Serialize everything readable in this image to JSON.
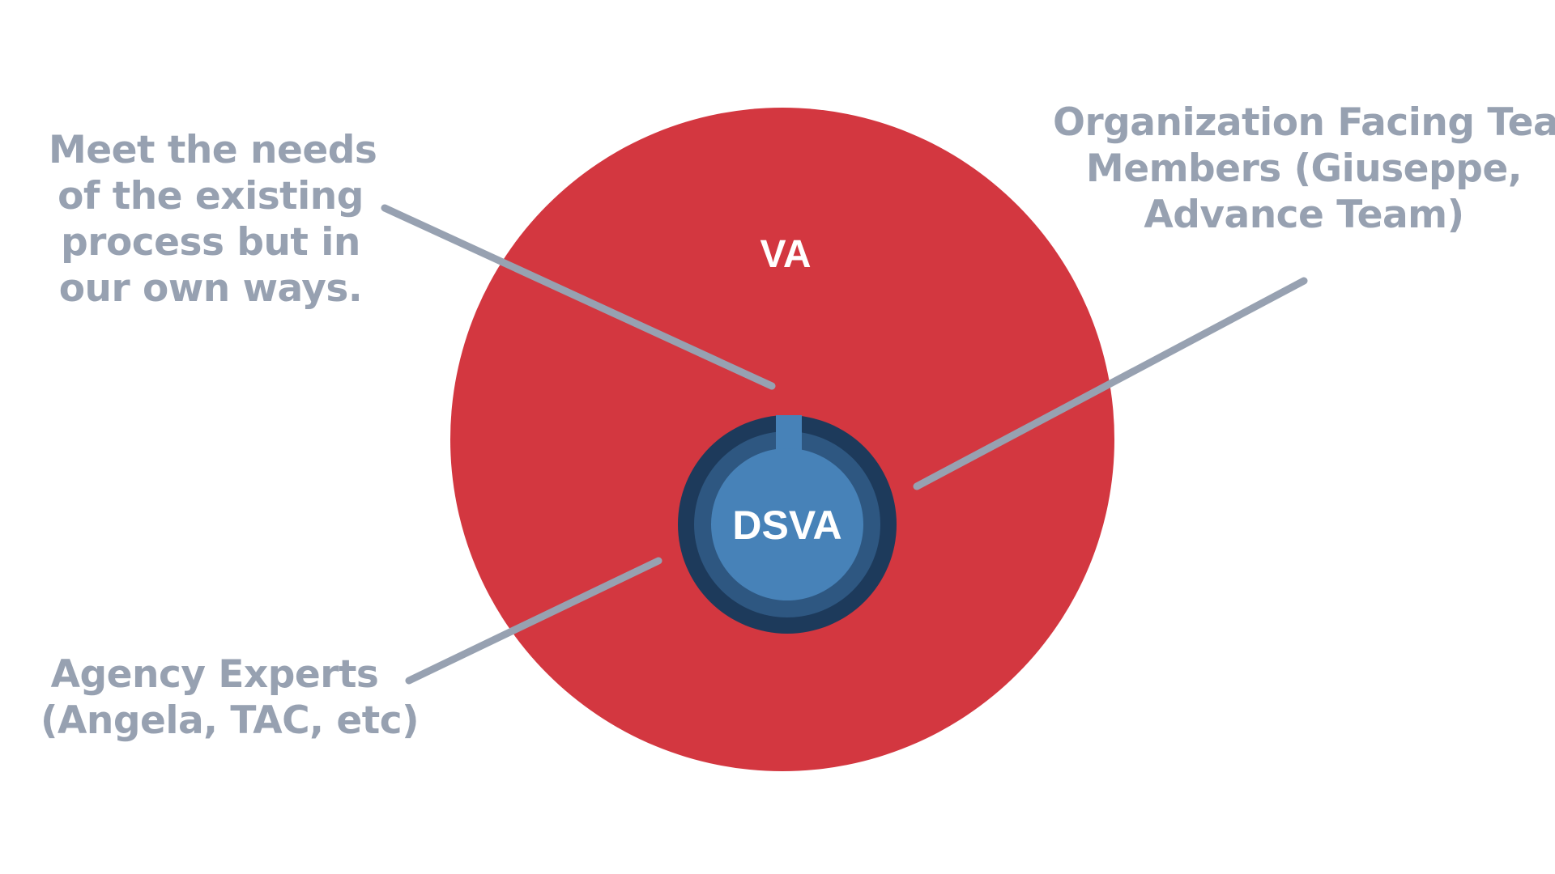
{
  "diagram": {
    "outer_circle": {
      "label": "VA",
      "color": "#d33740"
    },
    "inner_circle": {
      "label": "DSVA",
      "ring_colors": [
        "#1d3a5b",
        "#2e5781",
        "#4782b8"
      ]
    },
    "connector_color": "#97a1b1"
  },
  "annotations": {
    "top_left": {
      "lines": [
        "Meet the needs",
        "of the existing",
        "process but in",
        "our own ways."
      ]
    },
    "top_right": {
      "lines": [
        "Organization Facing Team",
        "Members (Giuseppe,",
        "Advance Team)"
      ]
    },
    "bottom_left": {
      "lines": [
        "Agency Experts",
        "(Angela, TAC, etc)"
      ]
    }
  }
}
